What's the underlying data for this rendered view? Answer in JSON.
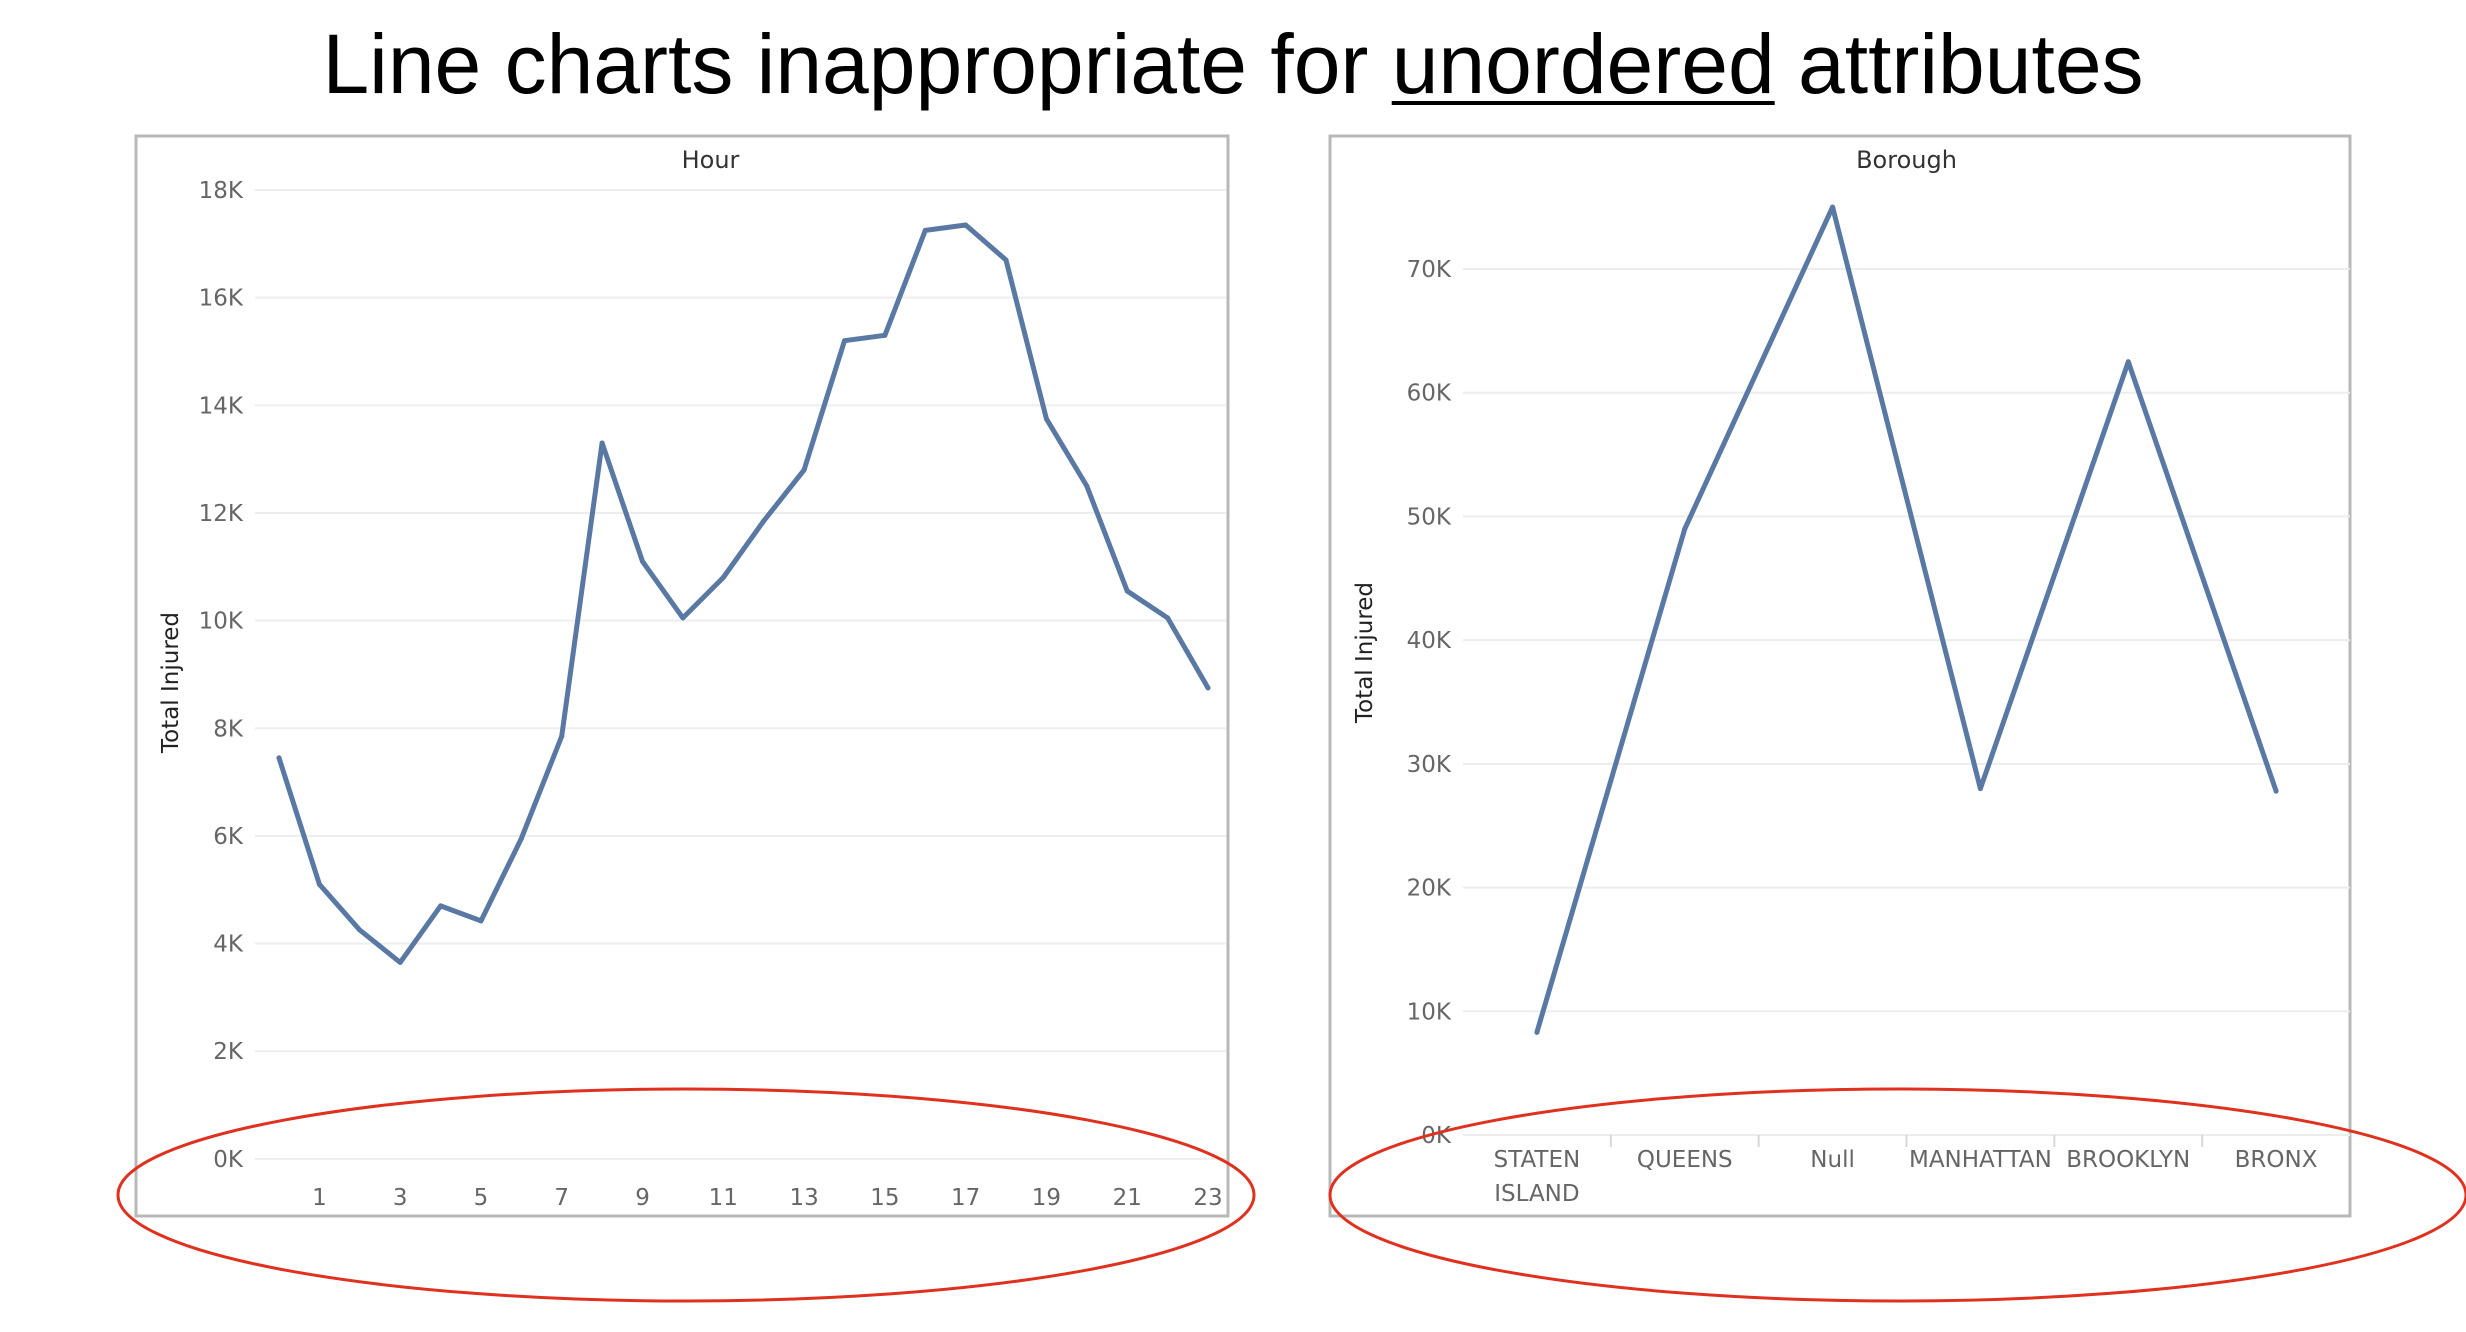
{
  "slide": {
    "title_before": "Line charts inappropriate for ",
    "title_emphasis": "unordered",
    "title_after": " attributes"
  },
  "colors": {
    "line": "#5978a3",
    "border": "#b8b8b8",
    "grid": "#ededed",
    "tick_text": "#666666",
    "title_text": "#333333",
    "ellipse": "#e0301e"
  },
  "chart_data": [
    {
      "type": "line",
      "title": "Hour",
      "xlabel": "",
      "ylabel": "Total Injured",
      "x": [
        0,
        1,
        2,
        3,
        4,
        5,
        6,
        7,
        8,
        9,
        10,
        11,
        12,
        13,
        14,
        15,
        16,
        17,
        18,
        19,
        20,
        21,
        22,
        23
      ],
      "values": [
        7450,
        5100,
        4250,
        3650,
        4700,
        4420,
        5950,
        7850,
        13300,
        11100,
        10050,
        10800,
        11850,
        12800,
        15200,
        15300,
        17250,
        17350,
        16700,
        13750,
        12500,
        10550,
        10050,
        8750
      ],
      "ylim": [
        -300,
        18000
      ],
      "yticks": [
        0,
        2000,
        4000,
        6000,
        8000,
        10000,
        12000,
        14000,
        16000,
        18000
      ],
      "ytick_labels": [
        "0K",
        "2K",
        "4K",
        "6K",
        "8K",
        "10K",
        "12K",
        "14K",
        "16K",
        "18K"
      ],
      "xtick_labels": [
        "1",
        "3",
        "5",
        "7",
        "9",
        "11",
        "13",
        "15",
        "17",
        "19",
        "21",
        "23"
      ],
      "xtick_values": [
        1,
        3,
        5,
        7,
        9,
        11,
        13,
        15,
        17,
        19,
        21,
        23
      ],
      "grid": true,
      "annotation": "red ellipse around x-axis"
    },
    {
      "type": "line",
      "title": "Borough",
      "xlabel": "",
      "ylabel": "Total Injured",
      "categories": [
        "STATEN ISLAND",
        "QUEENS",
        "Null",
        "MANHATTAN",
        "BROOKLYN",
        "BRONX"
      ],
      "category_label_lines": [
        [
          "STATEN",
          "ISLAND"
        ],
        [
          "QUEENS"
        ],
        [
          "Null"
        ],
        [
          "MANHATTAN"
        ],
        [
          "BROOKLYN"
        ],
        [
          "BRONX"
        ]
      ],
      "values": [
        8300,
        49000,
        75000,
        28000,
        62500,
        27800
      ],
      "ylim": [
        0,
        78000
      ],
      "yticks": [
        0,
        10000,
        20000,
        30000,
        40000,
        50000,
        60000,
        70000
      ],
      "ytick_labels": [
        "0K",
        "10K",
        "20K",
        "30K",
        "40K",
        "50K",
        "60K",
        "70K"
      ],
      "grid": true,
      "annotation": "red ellipse around x-axis"
    }
  ]
}
